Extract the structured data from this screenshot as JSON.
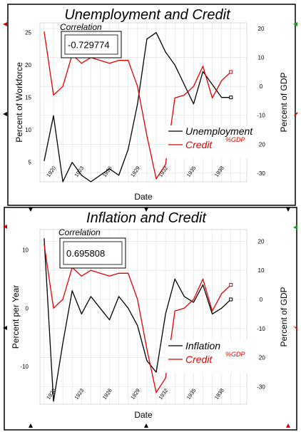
{
  "chart_data": [
    {
      "type": "line",
      "title": "Unemployment and Credit",
      "xlabel": "Date",
      "ylabel_left": "Percent of Workforce",
      "ylabel_right": "Percent of GDP",
      "x_tick_labels": [
        "1920",
        "1923",
        "1926",
        "1929",
        "1932",
        "1935",
        "1938"
      ],
      "left_ticks": [
        5,
        10,
        15,
        20,
        25
      ],
      "right_ticks": [
        20,
        10,
        0,
        -10,
        -20,
        -30
      ],
      "ylim_left": [
        2,
        26.5
      ],
      "ylim_right": [
        -33,
        22
      ],
      "annotation": {
        "label": "Correlation",
        "value": "-0.729774"
      },
      "legend": {
        "placement": "bottom-right",
        "entries": [
          "Unemployment",
          "Credit"
        ],
        "credit_superscript": "%GDP"
      },
      "series": [
        {
          "name": "Unemployment",
          "axis": "left",
          "color": "#000000",
          "x": [
            1919,
            1920,
            1921,
            1922,
            1923,
            1924,
            1925,
            1926,
            1927,
            1928,
            1929,
            1930,
            1931,
            1932,
            1933,
            1934,
            1935,
            1936,
            1937,
            1938,
            1939
          ],
          "values": [
            5.2,
            12.2,
            2.0,
            5.0,
            3.0,
            2.0,
            3.0,
            4.0,
            3.0,
            7.0,
            14.0,
            24.0,
            25.0,
            22.0,
            20.0,
            17.0,
            14.0,
            19.0,
            17.0,
            15.0,
            15.0
          ]
        },
        {
          "name": "Credit",
          "axis": "right",
          "color": "#e00000",
          "x": [
            1919,
            1920,
            1921,
            1922,
            1923,
            1924,
            1925,
            1926,
            1927,
            1928,
            1929,
            1930,
            1931,
            1932,
            1933,
            1934,
            1935,
            1936,
            1937,
            1938,
            1939
          ],
          "values": [
            19.0,
            -3.0,
            0.0,
            11.0,
            8.0,
            10.0,
            9.0,
            8.0,
            9.0,
            9.0,
            0.0,
            -17.0,
            -32.0,
            -27.0,
            -4.0,
            -3.0,
            0.0,
            7.0,
            -4.0,
            2.0,
            5.0
          ]
        }
      ]
    },
    {
      "type": "line",
      "title": "Inflation and Credit",
      "xlabel": "Date",
      "ylabel_left": "Percent per Year",
      "ylabel_right": "Percent of GDP",
      "x_tick_labels": [
        "1920",
        "1923",
        "1926",
        "1929",
        "1932",
        "1935",
        "1938"
      ],
      "left_ticks": [
        10,
        0,
        -10
      ],
      "right_ticks": [
        20,
        10,
        0,
        -10,
        -20,
        -30
      ],
      "ylim_left": [
        -16.5,
        13.5
      ],
      "ylim_right": [
        -36,
        24
      ],
      "annotation": {
        "label": "Correlation",
        "value": "0.695808"
      },
      "legend": {
        "placement": "bottom-right",
        "entries": [
          "Inflation",
          "Credit"
        ],
        "credit_superscript": "%GDP"
      },
      "series": [
        {
          "name": "Inflation",
          "axis": "left",
          "color": "#000000",
          "x": [
            1919,
            1920,
            1921,
            1922,
            1923,
            1924,
            1925,
            1926,
            1927,
            1928,
            1929,
            1930,
            1931,
            1932,
            1933,
            1934,
            1935,
            1936,
            1937,
            1938,
            1939
          ],
          "values": [
            12.0,
            -16.0,
            -6.0,
            3.0,
            -1.0,
            2.0,
            0.0,
            -2.0,
            2.0,
            0.0,
            -3.0,
            -9.0,
            -11.0,
            -1.0,
            5.0,
            2.0,
            1.0,
            4.0,
            -1.0,
            0.0,
            1.5
          ]
        },
        {
          "name": "Credit",
          "axis": "right",
          "color": "#e00000",
          "x": [
            1919,
            1920,
            1921,
            1922,
            1923,
            1924,
            1925,
            1926,
            1927,
            1928,
            1929,
            1930,
            1931,
            1932,
            1933,
            1934,
            1935,
            1936,
            1937,
            1938,
            1939
          ],
          "values": [
            19.0,
            -3.0,
            0.0,
            11.0,
            8.0,
            10.0,
            9.0,
            8.0,
            9.0,
            9.0,
            0.0,
            -17.0,
            -32.0,
            -27.0,
            -4.0,
            -3.0,
            0.0,
            7.0,
            -4.0,
            2.0,
            5.0
          ]
        }
      ]
    }
  ]
}
